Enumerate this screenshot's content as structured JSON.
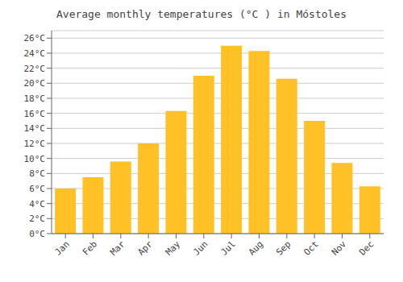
{
  "chart_data": {
    "type": "bar",
    "title": "Average monthly temperatures (°C ) in Móstoles",
    "categories": [
      "Jan",
      "Feb",
      "Mar",
      "Apr",
      "May",
      "Jun",
      "Jul",
      "Aug",
      "Sep",
      "Oct",
      "Nov",
      "Dec"
    ],
    "values": [
      6.0,
      7.5,
      9.6,
      12.0,
      16.3,
      21.0,
      25.0,
      24.3,
      20.6,
      15.0,
      9.4,
      6.3
    ],
    "color": "#FFC125",
    "ylim": [
      0,
      27
    ],
    "yticks": [
      {
        "value": 0,
        "label": "0°C"
      },
      {
        "value": 2,
        "label": "2°C"
      },
      {
        "value": 4,
        "label": "4°C"
      },
      {
        "value": 6,
        "label": "6°C"
      },
      {
        "value": 8,
        "label": "8°C"
      },
      {
        "value": 10,
        "label": "10°C"
      },
      {
        "value": 12,
        "label": "12°C"
      },
      {
        "value": 14,
        "label": "14°C"
      },
      {
        "value": 16,
        "label": "16°C"
      },
      {
        "value": 18,
        "label": "18°C"
      },
      {
        "value": 20,
        "label": "20°C"
      },
      {
        "value": 22,
        "label": "22°C"
      },
      {
        "value": 24,
        "label": "24°C"
      },
      {
        "value": 26,
        "label": "26°C"
      }
    ],
    "grid": true
  }
}
